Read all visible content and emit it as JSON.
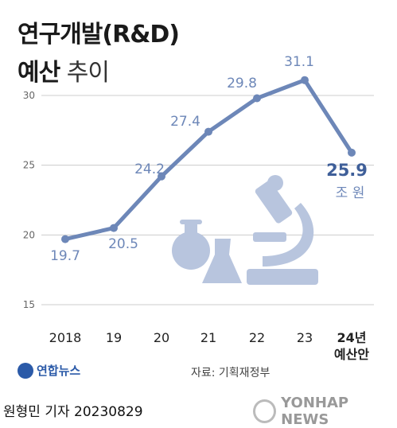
{
  "title": {
    "line1": "연구개발(R&D)",
    "line2_bold": "예산",
    "line2_light": "추이"
  },
  "unit": "조 원",
  "source": "자료: 기획재정부",
  "logo_text": "연합뉴스",
  "author": "원형민 기자  20230829",
  "watermark": "YONHAP NEWS",
  "colors": {
    "line": "#6d87b8",
    "grid": "#cccccc",
    "illustration": "#b8c5de",
    "last_label": "#3f5f99"
  },
  "illustration": "lab-flasks-and-microscope-icon",
  "chart_data": {
    "type": "line",
    "categories": [
      "2018",
      "19",
      "20",
      "21",
      "22",
      "23",
      "24년 예산안"
    ],
    "category_lines": [
      [
        "2018"
      ],
      [
        "19"
      ],
      [
        "20"
      ],
      [
        "21"
      ],
      [
        "22"
      ],
      [
        "23"
      ],
      [
        "24년",
        "예산안"
      ]
    ],
    "values": [
      19.7,
      20.5,
      24.2,
      27.4,
      29.8,
      31.1,
      25.9
    ],
    "value_labels": [
      "19.7",
      "20.5",
      "24.2",
      "27.4",
      "29.8",
      "31.1",
      "25.9"
    ],
    "yticks": [
      15,
      20,
      25,
      30
    ],
    "ylim": [
      15,
      31
    ],
    "grid": true
  }
}
